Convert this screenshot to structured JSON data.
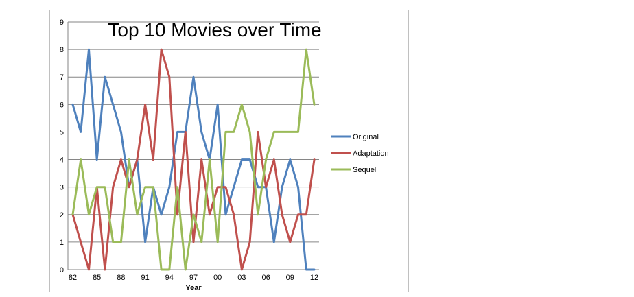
{
  "chart_data": {
    "type": "line",
    "title": "Top 10 Movies over Time",
    "xlabel": "Year",
    "ylabel": "",
    "ylim": [
      0,
      9
    ],
    "yticks": [
      "0",
      "1",
      "2",
      "3",
      "4",
      "5",
      "6",
      "7",
      "8",
      "9"
    ],
    "x": [
      "82",
      "83",
      "84",
      "85",
      "86",
      "87",
      "88",
      "89",
      "90",
      "91",
      "92",
      "93",
      "94",
      "95",
      "96",
      "97",
      "98",
      "99",
      "00",
      "01",
      "02",
      "03",
      "04",
      "05",
      "06",
      "07",
      "08",
      "09",
      "10",
      "11",
      "12"
    ],
    "x_tick_labels": [
      "82",
      "85",
      "88",
      "91",
      "94",
      "97",
      "00",
      "03",
      "06",
      "09",
      "12"
    ],
    "grid": "horizontal",
    "legend_position": "right",
    "series": [
      {
        "name": "Original",
        "color": "#4F81BD",
        "values": [
          6,
          5,
          8,
          4,
          7,
          6,
          5,
          3,
          4,
          1,
          3,
          2,
          3,
          5,
          5,
          7,
          5,
          4,
          6,
          2,
          3,
          4,
          4,
          3,
          3,
          1,
          3,
          4,
          3,
          0,
          0
        ]
      },
      {
        "name": "Adaptation",
        "color": "#C0504D",
        "values": [
          2,
          1,
          0,
          3,
          0,
          3,
          4,
          3,
          4,
          6,
          4,
          8,
          7,
          2,
          5,
          1,
          4,
          2,
          3,
          3,
          2,
          0,
          1,
          5,
          3,
          4,
          2,
          1,
          2,
          2,
          4
        ]
      },
      {
        "name": "Sequel",
        "color": "#9BBB59",
        "values": [
          2,
          4,
          2,
          3,
          3,
          1,
          1,
          4,
          2,
          3,
          3,
          0,
          0,
          3,
          0,
          2,
          1,
          4,
          1,
          5,
          5,
          6,
          5,
          2,
          4,
          5,
          5,
          5,
          5,
          8,
          6
        ]
      }
    ]
  }
}
